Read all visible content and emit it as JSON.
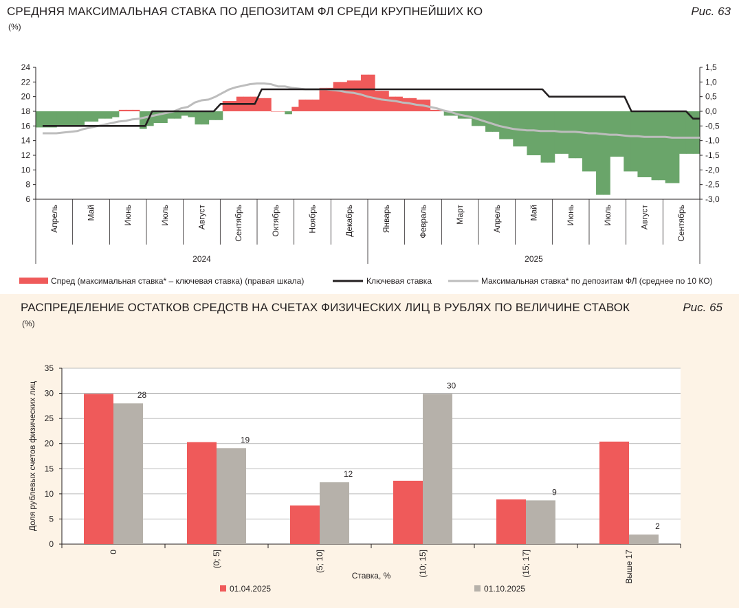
{
  "chart_data": [
    {
      "id": "fig63",
      "type": "bar+line",
      "title": "СРЕДНЯЯ МАКСИМАЛЬНАЯ СТАВКА ПО ДЕПОЗИТАМ ФЛ СРЕДИ КРУПНЕЙШИХ КО",
      "unit": "(%)",
      "fig_label": "Рис. 63",
      "left_axis": {
        "ticks": [
          "24",
          "22",
          "20",
          "18",
          "16",
          "14",
          "12",
          "10",
          "8",
          "6"
        ],
        "ylim": [
          6,
          24
        ]
      },
      "right_axis": {
        "ticks": [
          "1,5",
          "1,0",
          "0,5",
          "0,0",
          "-0,5",
          "-1,0",
          "-1,5",
          "-2,0",
          "-2,5",
          "-3,0"
        ],
        "ylim": [
          -3.0,
          1.5
        ]
      },
      "months": [
        "Апрель",
        "Май",
        "Июнь",
        "Июль",
        "Август",
        "Сентябрь",
        "Октябрь",
        "Ноябрь",
        "Декабрь",
        "Январь",
        "Февраль",
        "Март",
        "Апрель",
        "Май",
        "Июнь",
        "Июль",
        "Август",
        "Сентябрь"
      ],
      "years": [
        "2024",
        "2025"
      ],
      "legend": {
        "spread": "Спред (максимальная ставка* – ключевая ставка) (правая шкала)",
        "key_rate": "Ключевая ставка",
        "max_rate": "Максимальная ставка* по депозитам ФЛ (среднее по 10 КО)"
      },
      "colors": {
        "positive": "#ef5a5a",
        "negative": "#6aa56a",
        "key_rate": "#231f20",
        "max_rate": "#bdbdbd"
      },
      "series": [
        {
          "name": "Спред",
          "axis": "right",
          "values": [
            -0.55,
            -0.55,
            -0.55,
            -0.5,
            -0.5,
            -0.5,
            -0.5,
            -0.35,
            -0.35,
            -0.25,
            -0.25,
            -0.2,
            0.05,
            0.05,
            0.05,
            -0.6,
            -0.5,
            -0.4,
            -0.4,
            -0.25,
            -0.25,
            -0.15,
            -0.2,
            -0.45,
            -0.45,
            -0.3,
            -0.3,
            0.35,
            0.35,
            0.5,
            0.5,
            0.5,
            0.45,
            0.45,
            0.0,
            0.0,
            -0.1,
            0.15,
            0.4,
            0.4,
            0.4,
            0.8,
            0.8,
            1.0,
            1.0,
            1.05,
            1.05,
            1.25,
            1.25,
            0.7,
            0.7,
            0.5,
            0.5,
            0.45,
            0.45,
            0.4,
            0.4,
            0.05,
            0.05,
            -0.15,
            -0.15,
            -0.25,
            -0.25,
            -0.5,
            -0.5,
            -0.7,
            -0.7,
            -0.95,
            -0.95,
            -1.2,
            -1.2,
            -1.5,
            -1.5,
            -1.75,
            -1.75,
            -1.45,
            -1.45,
            -1.6,
            -1.6,
            -2.05,
            -2.05,
            -2.85,
            -2.85,
            -1.55,
            -1.55,
            -2.05,
            -2.05,
            -2.25,
            -2.25,
            -2.35,
            -2.35,
            -2.45,
            -2.45,
            -1.45,
            -1.45,
            -1.45
          ]
        },
        {
          "name": "Ключевая ставка",
          "axis": "left",
          "values": [
            16,
            16,
            16,
            16,
            16,
            16,
            16,
            16,
            16,
            16,
            16,
            16,
            16,
            16,
            16,
            16,
            18,
            18,
            18,
            18,
            18,
            18,
            18,
            18,
            18,
            18,
            19,
            19,
            19,
            19,
            19,
            19,
            21,
            21,
            21,
            21,
            21,
            21,
            21,
            21,
            21,
            21,
            21,
            21,
            21,
            21,
            21,
            21,
            21,
            21,
            21,
            21,
            21,
            21,
            21,
            21,
            21,
            21,
            21,
            21,
            21,
            21,
            21,
            21,
            21,
            21,
            21,
            21,
            21,
            21,
            21,
            21,
            21,
            21,
            20,
            20,
            20,
            20,
            20,
            20,
            20,
            20,
            20,
            20,
            20,
            20,
            18,
            18,
            18,
            18,
            18,
            18,
            18,
            18,
            18,
            17,
            17
          ]
        },
        {
          "name": "Максимальная ставка",
          "axis": "left",
          "values": [
            15,
            15,
            15,
            15.1,
            15.2,
            15.3,
            15.6,
            15.8,
            16,
            16.2,
            16.4,
            16.6,
            16.7,
            16.9,
            17,
            17.2,
            17.4,
            17.6,
            17.8,
            18,
            18.4,
            18.6,
            19.2,
            19.5,
            19.6,
            20,
            20.5,
            21,
            21.3,
            21.5,
            21.7,
            21.8,
            21.8,
            21.7,
            21.4,
            21.4,
            21.2,
            21.1,
            21,
            21,
            21,
            21,
            20.9,
            20.8,
            20.6,
            20.5,
            20.3,
            20,
            19.8,
            19.6,
            19.5,
            19.4,
            19.2,
            19.1,
            18.9,
            18.8,
            18.6,
            18.4,
            18.1,
            17.9,
            17.6,
            17.4,
            17.2,
            16.9,
            16.6,
            16.3,
            16.0,
            15.8,
            15.6,
            15.5,
            15.4,
            15.4,
            15.3,
            15.3,
            15.3,
            15.2,
            15.2,
            15.2,
            15.1,
            15.0,
            15.0,
            14.9,
            14.8,
            14.8,
            14.7,
            14.6,
            14.6,
            14.5,
            14.5,
            14.5,
            14.5,
            14.4,
            14.4,
            14.4,
            14.4,
            14.4
          ]
        }
      ]
    },
    {
      "id": "fig65",
      "type": "bar",
      "title": "РАСПРЕДЕЛЕНИЕ ОСТАТКОВ СРЕДСТВ НА СЧЕТАХ ФИЗИЧЕСКИХ ЛИЦ В РУБЛЯХ ПО ВЕЛИЧИНЕ СТАВОК",
      "unit": "(%)",
      "fig_label": "Рис. 65",
      "categories": [
        "0",
        "(0; 5]",
        "(5; 10]",
        "(10; 15]",
        "(15; 17]",
        "Выше 17"
      ],
      "xlabel": "Ставка, %",
      "ylabel": "Доля рублевых счетов физических лиц",
      "ylim": [
        0,
        35
      ],
      "yticks": [
        "35",
        "30",
        "25",
        "20",
        "15",
        "10",
        "5",
        "0"
      ],
      "series": [
        {
          "name": "01.04.2025",
          "color": "#ef5a5a",
          "values": [
            29.9,
            20.3,
            7.7,
            12.6,
            8.9,
            20.4
          ],
          "labels": [
            "",
            "",
            "",
            "",
            "",
            ""
          ]
        },
        {
          "name": "01.10.2025",
          "color": "#b6b1aa",
          "values": [
            28,
            19.1,
            12.3,
            29.9,
            8.7,
            1.9
          ],
          "labels": [
            "28",
            "19",
            "12",
            "30",
            "9",
            "2"
          ]
        }
      ]
    }
  ]
}
